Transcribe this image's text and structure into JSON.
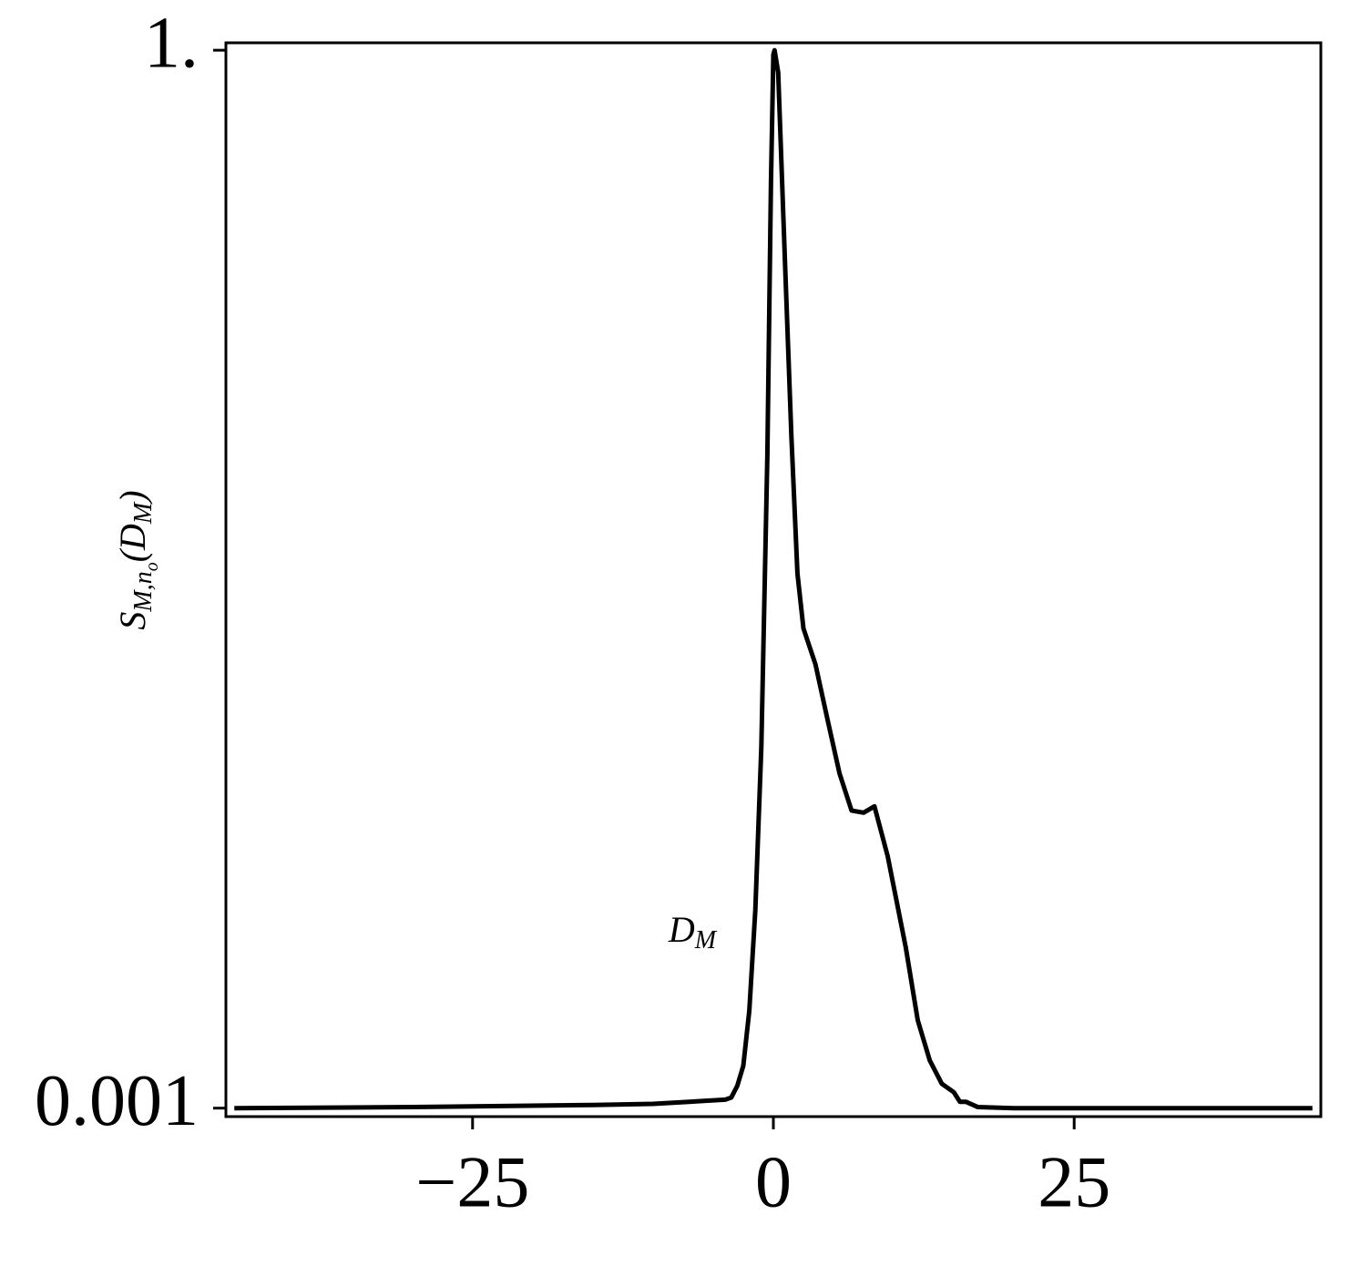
{
  "chart_data": {
    "type": "line",
    "ylabel": [
      "S",
      "M,n",
      "o",
      "(D",
      "M",
      ")"
    ],
    "ylabel_levels": [
      0,
      1,
      2,
      0,
      1,
      0
    ],
    "xlabel": [
      "D",
      "M"
    ],
    "xlabel_levels": [
      0,
      1
    ],
    "xlim": [
      -45.5,
      45.5
    ],
    "ylim": [
      -0.007,
      1.007
    ],
    "xticks": [
      {
        "value": -25,
        "label": "−25"
      },
      0,
      25
    ],
    "yticks": [
      0.001,
      {
        "value": 1,
        "label": "1."
      }
    ],
    "series": [
      {
        "color": "#000000",
        "x": [
          -44.8,
          -30,
          -15,
          -10,
          -7,
          -4,
          -3.5,
          -3,
          -2.5,
          -2,
          -1.5,
          -1,
          -0.5,
          -0.2,
          0,
          0.1,
          0.4,
          1,
          1.5,
          2,
          2.5,
          3.5,
          4.5,
          5.5,
          6.5,
          7.5,
          8.4,
          9.5,
          11,
          12,
          13,
          14,
          15,
          15.5,
          16,
          17,
          20,
          30,
          44.8
        ],
        "values": [
          0.001,
          0.002,
          0.004,
          0.005,
          0.007,
          0.009,
          0.011,
          0.022,
          0.041,
          0.093,
          0.188,
          0.342,
          0.617,
          0.875,
          0.996,
          1.0,
          0.979,
          0.789,
          0.635,
          0.506,
          0.454,
          0.42,
          0.368,
          0.317,
          0.282,
          0.28,
          0.286,
          0.239,
          0.153,
          0.084,
          0.046,
          0.024,
          0.016,
          0.007,
          0.007,
          0.002,
          0.001,
          0.001,
          0.001
        ]
      }
    ]
  }
}
